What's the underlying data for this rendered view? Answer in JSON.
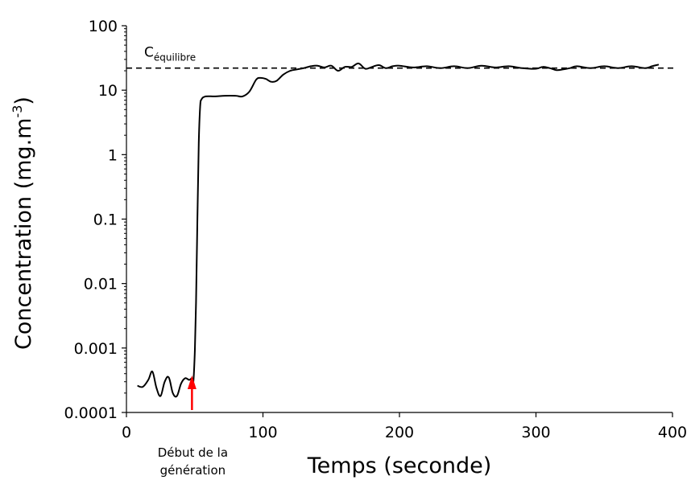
{
  "chart_data": {
    "type": "line",
    "title": "",
    "xlabel": "Temps (seconde)",
    "ylabel": "Concentration (mg.m-3)",
    "ylabel_main": "Concentration (mg.m",
    "ylabel_sup": "-3",
    "ylabel_close": ")",
    "xlim": [
      0,
      400
    ],
    "ylim": [
      0.0001,
      100
    ],
    "yscale": "log",
    "grid": false,
    "legend": "none",
    "x_ticks": [
      0,
      100,
      200,
      300,
      400
    ],
    "x_tick_labels": [
      "0",
      "100",
      "200",
      "300",
      "400"
    ],
    "y_ticks": [
      0.0001,
      0.001,
      0.01,
      0.1,
      1,
      10,
      100
    ],
    "y_tick_labels": [
      "0.0001",
      "0.001",
      "0.01",
      "0.1",
      "1",
      "10",
      "100"
    ],
    "series": [
      {
        "color": "#000000",
        "x": [
          8,
          12,
          16,
          19,
          22,
          25,
          28,
          31,
          34,
          37,
          40,
          43,
          46,
          48,
          49,
          50,
          51,
          52,
          53,
          54,
          55,
          58,
          65,
          72,
          80,
          85,
          90,
          95,
          98,
          102,
          106,
          110,
          115,
          120,
          125,
          130,
          135,
          140,
          145,
          150,
          155,
          160,
          165,
          170,
          175,
          180,
          185,
          190,
          195,
          200,
          210,
          220,
          230,
          240,
          250,
          260,
          270,
          280,
          290,
          300,
          305,
          310,
          315,
          320,
          325,
          330,
          340,
          350,
          360,
          370,
          380,
          385,
          390
        ],
        "y": [
          0.00026,
          0.00025,
          0.00032,
          0.00043,
          0.00024,
          0.00018,
          0.0003,
          0.00035,
          0.0002,
          0.00018,
          0.00028,
          0.00034,
          0.00032,
          0.00034,
          0.0003,
          0.0008,
          0.005,
          0.1,
          1.5,
          5.5,
          7.2,
          8,
          8,
          8.2,
          8.2,
          8,
          9.5,
          14.5,
          15.5,
          15,
          13.5,
          14,
          17.5,
          20,
          21,
          22,
          23.5,
          24,
          22.5,
          24,
          20,
          23,
          23,
          26,
          21.5,
          23,
          24.5,
          22,
          23.5,
          24,
          22.5,
          23.5,
          22,
          23.5,
          22,
          24,
          22.5,
          23.5,
          22,
          21.5,
          23,
          22,
          20.5,
          21,
          22,
          23.5,
          22,
          23.5,
          22,
          23.5,
          22,
          23.5,
          25
        ]
      }
    ],
    "reference_line": {
      "label_main": "C",
      "label_sub": "équilibre",
      "y": 22,
      "style": "dashed",
      "color": "#000000"
    },
    "annotation": {
      "line1": "Début de la",
      "line2": "génération",
      "x": 48,
      "arrow_color": "#ff0000"
    }
  }
}
